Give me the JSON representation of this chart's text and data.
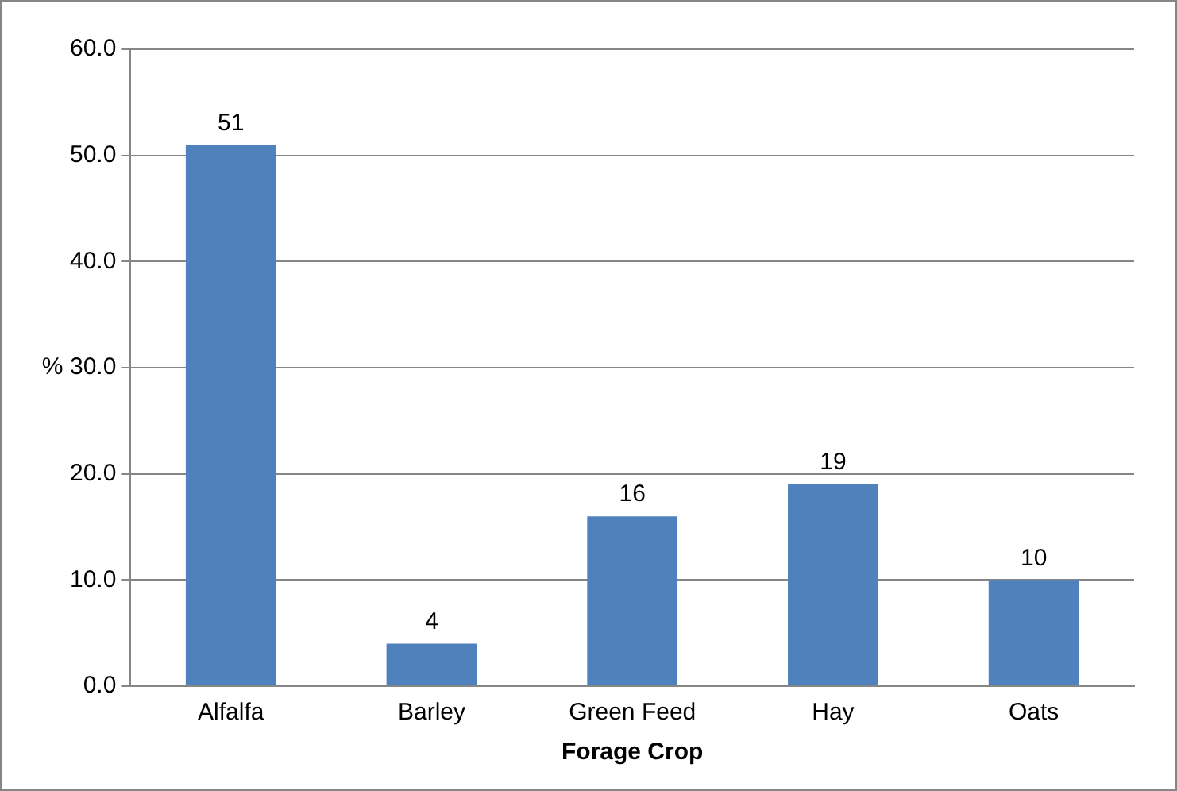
{
  "chart_data": {
    "type": "bar",
    "xlabel": "Forage Crop",
    "ylabel": "%",
    "categories": [
      "Alfalfa",
      "Barley",
      "Green Feed",
      "Hay",
      "Oats"
    ],
    "values": [
      51,
      4,
      16,
      19,
      10
    ],
    "color": "#4f81bd",
    "ylim": [
      0,
      60
    ],
    "yticks": [
      {
        "value": 0,
        "label": "0.0"
      },
      {
        "value": 10,
        "label": "10.0"
      },
      {
        "value": 20,
        "label": "20.0"
      },
      {
        "value": 30,
        "label": "30.0"
      },
      {
        "value": 40,
        "label": "40.0"
      },
      {
        "value": 50,
        "label": "50.0"
      },
      {
        "value": 60,
        "label": "60.0"
      }
    ],
    "grid": "y",
    "data_labels": true,
    "legend": false
  }
}
